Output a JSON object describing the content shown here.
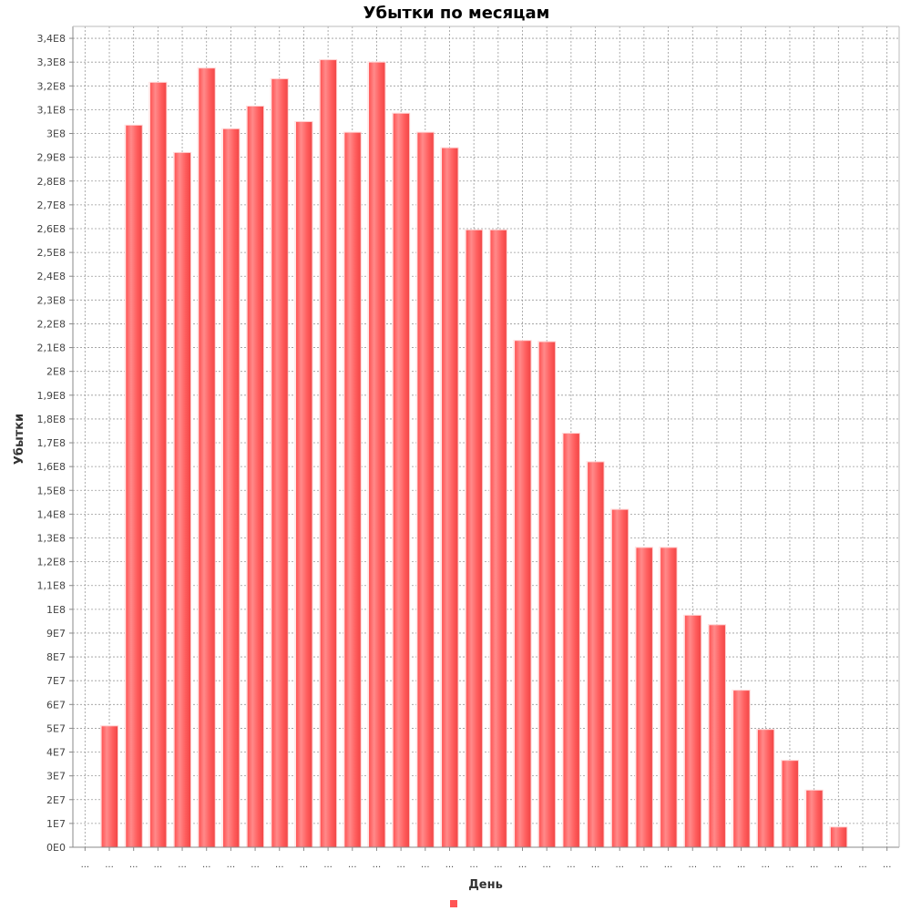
{
  "chart_data": {
    "type": "bar",
    "title": "Убытки по месяцам",
    "xlabel": "День",
    "ylabel": "Убытки",
    "ylim": [
      0,
      345000000
    ],
    "y_ticks": [
      "0E0",
      "1E7",
      "2E7",
      "3E7",
      "4E7",
      "5E7",
      "6E7",
      "7E7",
      "8E7",
      "9E7",
      "1E8",
      "1,1E8",
      "1,2E8",
      "1,3E8",
      "1,4E8",
      "1,5E8",
      "1,6E8",
      "1,7E8",
      "1,8E8",
      "1,9E8",
      "2E8",
      "2,1E8",
      "2,2E8",
      "2,3E8",
      "2,4E8",
      "2,5E8",
      "2,6E8",
      "2,7E8",
      "2,8E8",
      "2,9E8",
      "3E8",
      "3,1E8",
      "3,2E8",
      "3,3E8",
      "3,4E8"
    ],
    "categories": [
      "...",
      "...",
      "...",
      "...",
      "...",
      "...",
      "...",
      "...",
      "...",
      "...",
      "...",
      "...",
      "...",
      "...",
      "...",
      "...",
      "...",
      "...",
      "...",
      "...",
      "...",
      "...",
      "...",
      "...",
      "...",
      "...",
      "...",
      "...",
      "...",
      "...",
      "...",
      "...",
      "...",
      "..."
    ],
    "series": [
      {
        "name": "",
        "color": "#ff5555",
        "values": [
          0,
          51000000,
          303500000,
          321500000,
          292000000,
          327500000,
          302000000,
          311500000,
          323000000,
          305000000,
          331000000,
          300500000,
          330000000,
          308500000,
          300500000,
          294000000,
          259500000,
          259500000,
          213000000,
          212500000,
          174000000,
          162000000,
          142000000,
          126000000,
          126000000,
          97500000,
          93500000,
          66000000,
          49500000,
          36500000,
          24000000,
          8500000,
          0,
          0
        ]
      }
    ],
    "grid": true,
    "legend": "bottom-center"
  }
}
